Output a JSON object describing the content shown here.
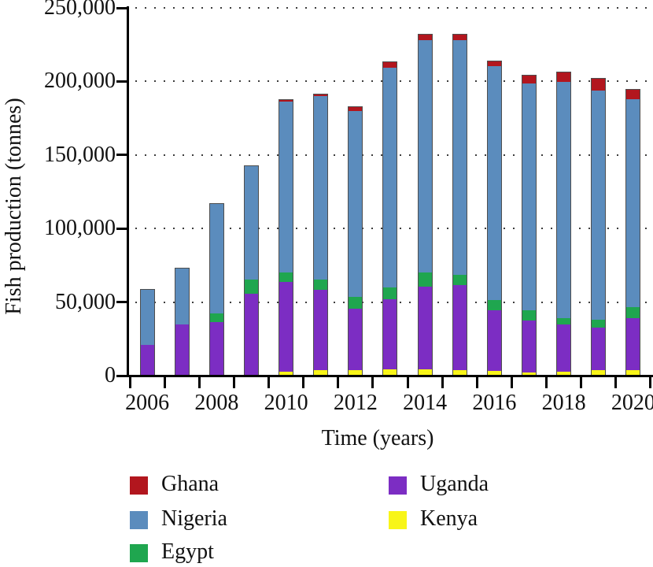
{
  "chart_data": {
    "type": "bar",
    "stacked": true,
    "title": "",
    "xlabel": "Time (years)",
    "ylabel": "Fish production (tonnes)",
    "ylim": [
      0,
      250000
    ],
    "ytick_values": [
      0,
      50000,
      100000,
      150000,
      200000,
      250000
    ],
    "ytick_labels": [
      "0",
      "50,000",
      "100,000",
      "150,000",
      "200,000",
      "250,000"
    ],
    "xtick_labels": [
      "2006",
      "2008",
      "2010",
      "2012",
      "2014",
      "2016",
      "2018",
      "2020"
    ],
    "grid": "horizontal dotted lines at each 50,000",
    "legend_position": "below chart, two columns",
    "categories": [
      2006,
      2007,
      2008,
      2009,
      2010,
      2011,
      2012,
      2013,
      2014,
      2015,
      2016,
      2017,
      2018,
      2019,
      2020
    ],
    "series": [
      {
        "name": "Ghana",
        "color": "#b2161e",
        "values": [
          0,
          0,
          0,
          0,
          1100,
          1200,
          2700,
          3600,
          3900,
          3700,
          3200,
          5400,
          6400,
          8000,
          6400
        ]
      },
      {
        "name": "Nigeria",
        "color": "#5b8cbd",
        "values": [
          38100,
          38000,
          74500,
          77400,
          116700,
          125100,
          126900,
          149700,
          158200,
          160000,
          159000,
          154300,
          161000,
          156300,
          141500
        ]
      },
      {
        "name": "Egypt",
        "color": "#1fa64f",
        "values": [
          0,
          0,
          6300,
          9700,
          6300,
          6700,
          8000,
          8000,
          9800,
          6700,
          7100,
          7100,
          4400,
          5400,
          7700
        ]
      },
      {
        "name": "Uganda",
        "color": "#7c2dc3",
        "values": [
          21000,
          35300,
          36400,
          55700,
          61300,
          55000,
          41600,
          47800,
          56200,
          58200,
          41600,
          35700,
          32100,
          29100,
          35600
        ]
      },
      {
        "name": "Kenya",
        "color": "#f8f518",
        "values": [
          0,
          0,
          0,
          0,
          2700,
          3600,
          3900,
          4400,
          4400,
          3700,
          3000,
          2000,
          2700,
          3600,
          3600
        ]
      }
    ],
    "stack_order_bottom_to_top": [
      "Kenya",
      "Uganda",
      "Egypt",
      "Nigeria",
      "Ghana"
    ],
    "totals": [
      59100,
      73300,
      117200,
      142800,
      188100,
      191600,
      183100,
      213500,
      232500,
      232300,
      213900,
      204500,
      206600,
      202400,
      194800
    ]
  }
}
